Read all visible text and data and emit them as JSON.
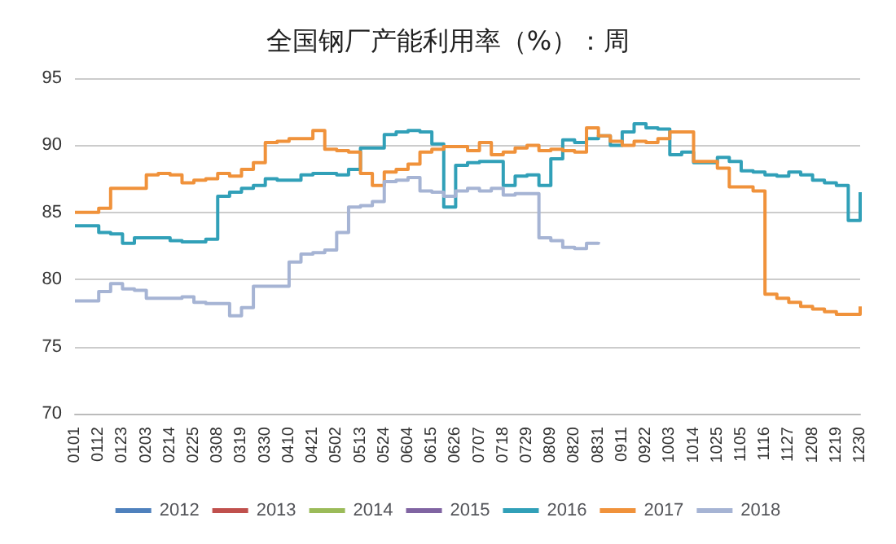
{
  "chart_data": {
    "type": "step",
    "title": "全国钢厂产能利用率（%）：周",
    "categories": [
      "0101",
      null,
      "0112",
      null,
      "0123",
      null,
      "0203",
      null,
      "0214",
      null,
      "0225",
      null,
      "0308",
      null,
      "0319",
      null,
      "0330",
      null,
      "0410",
      null,
      "0421",
      null,
      "0502",
      null,
      "0513",
      null,
      "0524",
      null,
      "0604",
      null,
      "0615",
      null,
      "0626",
      null,
      "0707",
      null,
      "0718",
      null,
      "0729",
      null,
      "0809",
      null,
      "0820",
      null,
      "0831",
      null,
      "0911",
      null,
      "0922",
      null,
      "1003",
      null,
      "1014",
      null,
      "1025",
      null,
      "1105",
      null,
      "1116",
      null,
      "1127",
      null,
      "1208",
      null,
      "1219",
      null,
      "1230"
    ],
    "series": [
      {
        "name": "2012",
        "color": "#4f81bd",
        "values": [
          null,
          null,
          null,
          null,
          null,
          null,
          null,
          null,
          null,
          null,
          null,
          null,
          null,
          null,
          null,
          null,
          null,
          null,
          null,
          null,
          null,
          null,
          null,
          null,
          null,
          null,
          null,
          null,
          null,
          null,
          null,
          null,
          null,
          null,
          null,
          null,
          null,
          null,
          null,
          null,
          null,
          null,
          null,
          null,
          null,
          null,
          null,
          null,
          null,
          null,
          null,
          null,
          null,
          null,
          null,
          null,
          null,
          null,
          null,
          null,
          null,
          null,
          null,
          null,
          null,
          null,
          null
        ]
      },
      {
        "name": "2013",
        "color": "#c0504d",
        "values": [
          null,
          null,
          null,
          null,
          null,
          null,
          null,
          null,
          null,
          null,
          null,
          null,
          null,
          null,
          null,
          null,
          null,
          null,
          null,
          null,
          null,
          null,
          null,
          null,
          null,
          null,
          null,
          null,
          null,
          null,
          null,
          null,
          null,
          null,
          null,
          null,
          null,
          null,
          null,
          null,
          null,
          null,
          null,
          null,
          null,
          null,
          null,
          null,
          null,
          null,
          null,
          null,
          null,
          null,
          null,
          null,
          null,
          null,
          null,
          null,
          null,
          null,
          null,
          null,
          null,
          null,
          null
        ]
      },
      {
        "name": "2014",
        "color": "#9bbb59",
        "values": [
          null,
          null,
          null,
          null,
          null,
          null,
          null,
          null,
          null,
          null,
          null,
          null,
          null,
          null,
          null,
          null,
          null,
          null,
          null,
          null,
          null,
          null,
          null,
          null,
          null,
          null,
          null,
          null,
          null,
          null,
          null,
          null,
          null,
          null,
          null,
          null,
          null,
          null,
          null,
          null,
          null,
          null,
          null,
          null,
          null,
          null,
          null,
          null,
          null,
          null,
          null,
          null,
          null,
          null,
          null,
          null,
          null,
          null,
          null,
          null,
          null,
          null,
          null,
          null,
          null,
          null,
          null
        ]
      },
      {
        "name": "2015",
        "color": "#8064a2",
        "values": [
          null,
          null,
          null,
          null,
          null,
          null,
          null,
          null,
          null,
          null,
          null,
          null,
          null,
          null,
          null,
          null,
          null,
          null,
          null,
          null,
          null,
          null,
          null,
          null,
          null,
          null,
          null,
          null,
          null,
          null,
          null,
          null,
          null,
          null,
          null,
          null,
          null,
          null,
          null,
          null,
          null,
          null,
          null,
          null,
          null,
          null,
          null,
          null,
          null,
          null,
          null,
          null,
          null,
          null,
          null,
          null,
          null,
          null,
          null,
          null,
          null,
          null,
          null,
          null,
          null,
          null,
          null
        ]
      },
      {
        "name": "2016",
        "color": "#31a0b8",
        "values": [
          84.0,
          84.0,
          83.5,
          83.4,
          82.7,
          83.1,
          83.1,
          83.1,
          82.9,
          82.8,
          82.8,
          83.0,
          86.2,
          86.5,
          86.8,
          87.0,
          87.5,
          87.4,
          87.4,
          87.8,
          87.9,
          87.9,
          87.8,
          88.2,
          89.8,
          89.8,
          90.8,
          91.0,
          91.1,
          91.0,
          90.1,
          85.4,
          88.5,
          88.7,
          88.8,
          88.8,
          87.0,
          87.7,
          87.8,
          87.0,
          89.0,
          90.4,
          90.2,
          90.5,
          90.7,
          90.0,
          91.0,
          91.6,
          91.3,
          91.2,
          89.3,
          89.5,
          88.7,
          88.7,
          89.1,
          88.8,
          88.1,
          88.0,
          87.8,
          87.7,
          88.0,
          87.8,
          87.4,
          87.2,
          87.0,
          84.4,
          86.5
        ]
      },
      {
        "name": "2017",
        "color": "#f0923b",
        "values": [
          85.0,
          85.0,
          85.3,
          86.8,
          86.8,
          86.8,
          87.8,
          87.9,
          87.8,
          87.2,
          87.4,
          87.5,
          87.9,
          87.7,
          88.2,
          88.7,
          90.2,
          90.3,
          90.5,
          90.5,
          91.1,
          89.7,
          89.6,
          89.5,
          87.9,
          87.0,
          88.0,
          88.2,
          88.6,
          89.5,
          89.7,
          89.9,
          89.9,
          89.6,
          90.2,
          89.3,
          89.5,
          89.8,
          90.0,
          89.6,
          89.7,
          89.6,
          89.5,
          91.3,
          90.7,
          90.3,
          90.0,
          90.3,
          90.2,
          90.5,
          91.0,
          91.0,
          88.8,
          88.8,
          88.3,
          86.9,
          86.9,
          86.6,
          78.9,
          78.6,
          78.3,
          78.0,
          77.8,
          77.6,
          77.4,
          77.4,
          78.0
        ]
      },
      {
        "name": "2018",
        "color": "#a6b4d4",
        "values": [
          78.4,
          78.4,
          79.1,
          79.7,
          79.3,
          79.2,
          78.6,
          78.6,
          78.6,
          78.7,
          78.3,
          78.2,
          78.2,
          77.3,
          77.9,
          79.5,
          79.5,
          79.5,
          81.3,
          81.9,
          82.0,
          82.2,
          83.5,
          85.4,
          85.5,
          85.8,
          87.3,
          87.4,
          87.6,
          86.6,
          86.5,
          86.2,
          86.6,
          86.8,
          86.6,
          86.8,
          86.3,
          86.4,
          86.4,
          83.1,
          82.9,
          82.4,
          82.3,
          82.7,
          82.8,
          null,
          null,
          null,
          null,
          null,
          null,
          null,
          null,
          null,
          null,
          null,
          null,
          null,
          null,
          null,
          null,
          null,
          null,
          null,
          null,
          null,
          null
        ]
      }
    ],
    "ylim": [
      70,
      95
    ],
    "yticks": [
      70,
      75,
      80,
      85,
      90,
      95
    ],
    "grid": "y",
    "legend": "bottom",
    "marker": "none"
  }
}
